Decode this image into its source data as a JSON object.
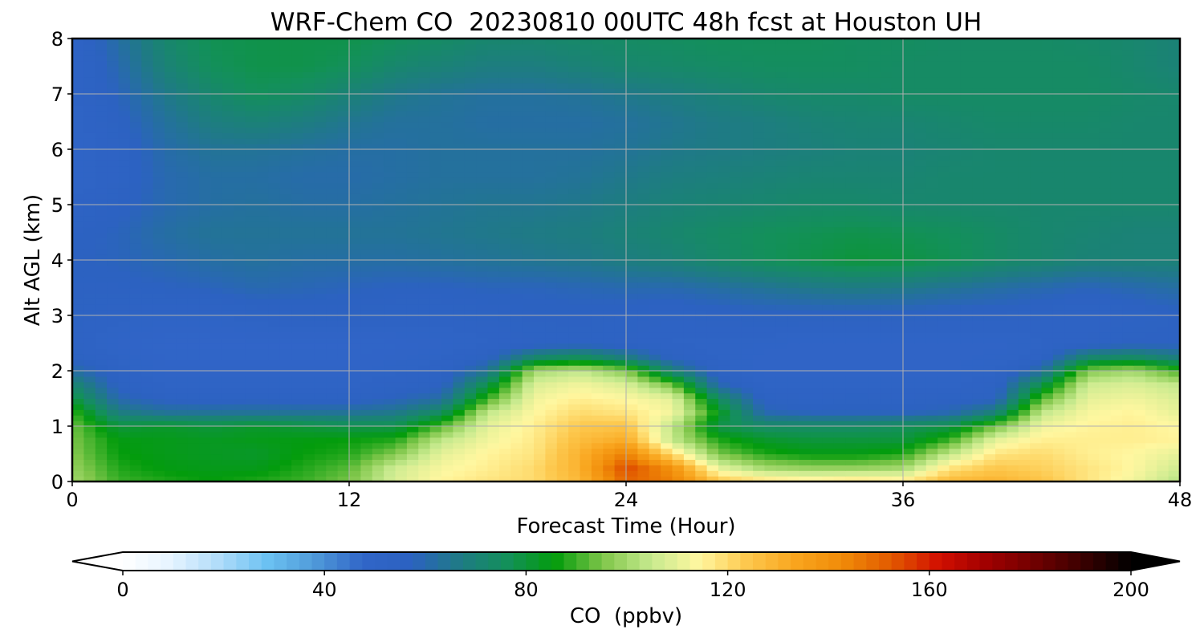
{
  "chart_data": {
    "type": "heatmap",
    "title": "WRF-Chem CO  20230810 00UTC 48h fcst at Houston UH",
    "xlabel": "Forecast Time (Hour)",
    "ylabel": "Alt AGL (km)",
    "xlim": [
      0,
      48
    ],
    "ylim": [
      0,
      8
    ],
    "xticks": [
      0,
      12,
      24,
      36,
      48
    ],
    "yticks": [
      0,
      1,
      2,
      3,
      4,
      5,
      6,
      7,
      8
    ],
    "grid": true,
    "x": [
      0,
      2,
      4,
      6,
      8,
      10,
      12,
      14,
      16,
      18,
      20,
      22,
      24,
      26,
      28,
      30,
      32,
      34,
      36,
      38,
      40,
      42,
      44,
      46,
      48
    ],
    "y": [
      0,
      0.25,
      0.5,
      0.75,
      1,
      1.25,
      1.5,
      1.75,
      2,
      2.25,
      2.5,
      3,
      3.5,
      4,
      4.5,
      5,
      5.5,
      6,
      6.5,
      7,
      7.5,
      8
    ],
    "z": [
      [
        100,
        90,
        88,
        86,
        88,
        90,
        95,
        108,
        115,
        118,
        120,
        128,
        150,
        145,
        125,
        120,
        118,
        120,
        118,
        128,
        130,
        125,
        118,
        112,
        102
      ],
      [
        98,
        88,
        85,
        84,
        84,
        88,
        92,
        106,
        113,
        116,
        120,
        130,
        155,
        140,
        110,
        100,
        98,
        98,
        100,
        118,
        124,
        122,
        118,
        114,
        106
      ],
      [
        96,
        86,
        84,
        83,
        82,
        86,
        88,
        96,
        110,
        115,
        118,
        130,
        145,
        120,
        95,
        88,
        85,
        85,
        88,
        104,
        118,
        120,
        116,
        114,
        110
      ],
      [
        95,
        85,
        84,
        83,
        84,
        85,
        86,
        88,
        104,
        112,
        117,
        127,
        132,
        105,
        88,
        82,
        80,
        80,
        80,
        90,
        110,
        116,
        116,
        116,
        115
      ],
      [
        94,
        80,
        82,
        80,
        82,
        80,
        78,
        78,
        92,
        110,
        116,
        124,
        125,
        104,
        78,
        74,
        74,
        74,
        76,
        78,
        94,
        112,
        115,
        116,
        114
      ],
      [
        90,
        68,
        64,
        64,
        64,
        64,
        64,
        66,
        75,
        104,
        114,
        120,
        118,
        112,
        84,
        60,
        58,
        58,
        58,
        60,
        70,
        104,
        113,
        115,
        110
      ],
      [
        80,
        60,
        56,
        55,
        56,
        55,
        55,
        58,
        62,
        90,
        112,
        116,
        114,
        110,
        75,
        55,
        54,
        55,
        54,
        55,
        56,
        92,
        110,
        112,
        108
      ],
      [
        72,
        56,
        52,
        52,
        52,
        52,
        52,
        54,
        56,
        78,
        108,
        112,
        108,
        94,
        60,
        52,
        52,
        52,
        52,
        52,
        54,
        78,
        106,
        108,
        104
      ],
      [
        62,
        54,
        50,
        50,
        50,
        50,
        50,
        52,
        54,
        64,
        100,
        104,
        96,
        70,
        54,
        50,
        50,
        50,
        50,
        50,
        52,
        62,
        96,
        100,
        90
      ],
      [
        56,
        52,
        49,
        49,
        49,
        49,
        49,
        50,
        52,
        56,
        72,
        76,
        68,
        56,
        52,
        50,
        50,
        50,
        50,
        50,
        51,
        54,
        72,
        74,
        68
      ],
      [
        54,
        50,
        48,
        48,
        48,
        48,
        48,
        49,
        50,
        52,
        54,
        55,
        54,
        52,
        52,
        51,
        50,
        50,
        50,
        50,
        50,
        52,
        54,
        56,
        56
      ],
      [
        55,
        53,
        52,
        52,
        54,
        55,
        55,
        54,
        54,
        55,
        56,
        56,
        55,
        54,
        55,
        56,
        56,
        56,
        56,
        55,
        55,
        54,
        53,
        54,
        56
      ],
      [
        56,
        56,
        57,
        58,
        60,
        59,
        58,
        57,
        57,
        58,
        58,
        59,
        60,
        60,
        62,
        64,
        66,
        67,
        66,
        64,
        62,
        60,
        58,
        60,
        62
      ],
      [
        57,
        58,
        60,
        62,
        63,
        62,
        62,
        62,
        63,
        64,
        65,
        66,
        68,
        70,
        73,
        76,
        78,
        80,
        79,
        77,
        74,
        72,
        70,
        70,
        70
      ],
      [
        56,
        58,
        62,
        64,
        64,
        64,
        64,
        64,
        65,
        66,
        67,
        68,
        70,
        72,
        74,
        76,
        77,
        78,
        77,
        76,
        74,
        72,
        71,
        70,
        70
      ],
      [
        53,
        56,
        60,
        62,
        63,
        62,
        62,
        63,
        64,
        65,
        65,
        66,
        68,
        70,
        71,
        72,
        73,
        73,
        72,
        72,
        72,
        72,
        72,
        72,
        72
      ],
      [
        50,
        54,
        60,
        62,
        62,
        61,
        61,
        62,
        63,
        63,
        63,
        64,
        66,
        68,
        69,
        70,
        71,
        71,
        71,
        72,
        72,
        72,
        72,
        72,
        72
      ],
      [
        50,
        54,
        61,
        64,
        64,
        63,
        62,
        62,
        63,
        63,
        63,
        63,
        64,
        66,
        67,
        68,
        69,
        70,
        70,
        71,
        72,
        72,
        72,
        72,
        72
      ],
      [
        51,
        56,
        63,
        68,
        70,
        68,
        65,
        63,
        63,
        62,
        62,
        62,
        63,
        65,
        67,
        68,
        70,
        71,
        71,
        72,
        73,
        73,
        73,
        72,
        72
      ],
      [
        52,
        58,
        66,
        72,
        76,
        74,
        70,
        66,
        64,
        63,
        63,
        64,
        66,
        68,
        70,
        72,
        73,
        73,
        74,
        74,
        74,
        74,
        74,
        73,
        72
      ],
      [
        52,
        60,
        70,
        76,
        78,
        78,
        76,
        72,
        70,
        68,
        68,
        70,
        72,
        73,
        74,
        75,
        75,
        75,
        74,
        74,
        74,
        74,
        74,
        72,
        70
      ],
      [
        52,
        62,
        72,
        77,
        78,
        78,
        78,
        76,
        74,
        72,
        72,
        73,
        74,
        75,
        76,
        76,
        76,
        75,
        75,
        74,
        74,
        74,
        73,
        72,
        70
      ]
    ],
    "colorbar": {
      "label": "CO  (ppbv)",
      "min": 0,
      "max": 200,
      "ticks": [
        0,
        40,
        80,
        120,
        160,
        200
      ],
      "extend": "both",
      "colors": [
        "#ffffff",
        "#e6f4ff",
        "#b0dcfa",
        "#6cc2f2",
        "#4f9ad9",
        "#3165c8",
        "#2c62c1",
        "#1f7a86",
        "#13905a",
        "#039c0c",
        "#7fc64a",
        "#c7ea8e",
        "#fff7a0",
        "#fdc84d",
        "#f9a51e",
        "#f08a08",
        "#e25a00",
        "#d20f00",
        "#a00000",
        "#700000",
        "#3a0000",
        "#000000"
      ]
    }
  }
}
